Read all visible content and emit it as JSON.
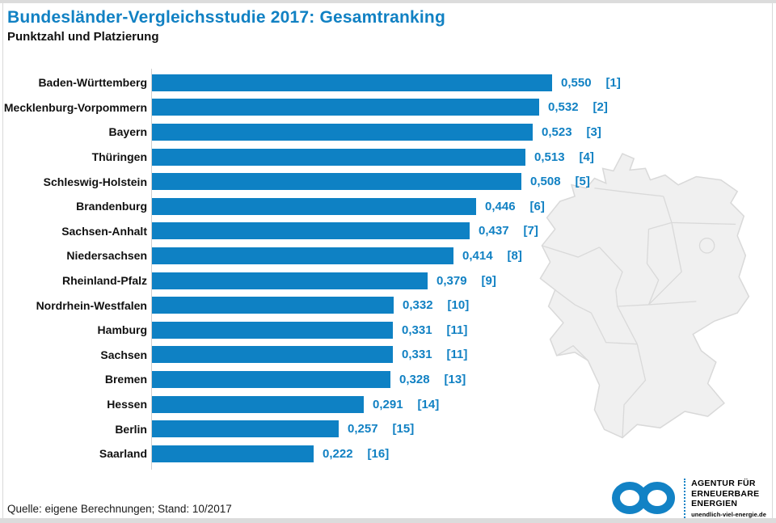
{
  "chart_data": {
    "type": "bar",
    "orientation": "horizontal",
    "title": "Bundesländer-Vergleichsstudie 2017: Gesamtranking",
    "subtitle": "Punktzahl und Platzierung",
    "categories": [
      "Baden-Württemberg",
      "Mecklenburg-Vorpommern",
      "Bayern",
      "Thüringen",
      "Schleswig-Holstein",
      "Brandenburg",
      "Sachsen-Anhalt",
      "Niedersachsen",
      "Rheinland-Pfalz",
      "Nordrhein-Westfalen",
      "Hamburg",
      "Sachsen",
      "Bremen",
      "Hessen",
      "Berlin",
      "Saarland"
    ],
    "values": [
      0.55,
      0.532,
      0.523,
      0.513,
      0.508,
      0.446,
      0.437,
      0.414,
      0.379,
      0.332,
      0.331,
      0.331,
      0.328,
      0.291,
      0.257,
      0.222
    ],
    "value_labels": [
      "0,550",
      "0,532",
      "0,523",
      "0,513",
      "0,508",
      "0,446",
      "0,437",
      "0,414",
      "0,379",
      "0,332",
      "0,331",
      "0,331",
      "0,328",
      "0,291",
      "0,257",
      "0,222"
    ],
    "ranks": [
      "[1]",
      "[2]",
      "[3]",
      "[4]",
      "[5]",
      "[6]",
      "[7]",
      "[8]",
      "[9]",
      "[10]",
      "[11]",
      "[11]",
      "[13]",
      "[14]",
      "[15]",
      "[16]"
    ],
    "xlim": [
      0,
      0.6
    ],
    "grid": false,
    "legend": "none",
    "xlabel": "",
    "ylabel": "",
    "bar_color": "#0e81c4",
    "value_color": "#1181c3",
    "title_color": "#1181c3",
    "source": "Quelle: eigene Berechnungen; Stand: 10/2017"
  },
  "map": {
    "label": "germany-states-outline",
    "fill": "#f0f0f0",
    "stroke": "#d9d9d9"
  },
  "logo": {
    "icon": "infinity-icon",
    "lines": [
      "AGENTUR FÜR",
      "ERNEUERBARE",
      "ENERGIEN"
    ],
    "url": "unendlich-viel-energie.de",
    "color": "#1282c5"
  }
}
